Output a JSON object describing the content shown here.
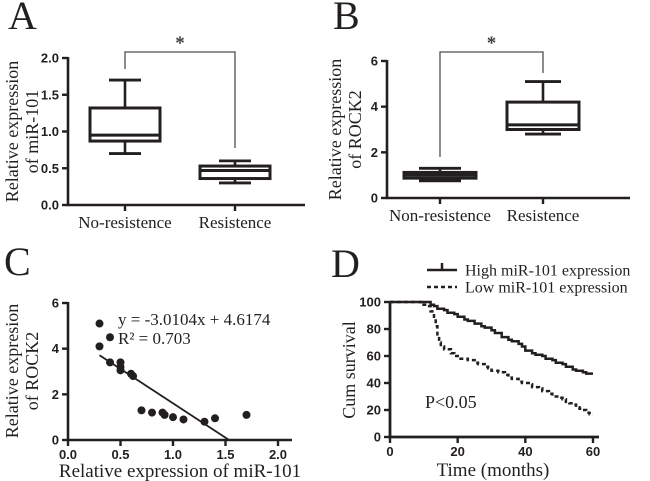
{
  "colors": {
    "ink": "#231f20",
    "bracket": "#4d4d4d",
    "background": "#ffffff"
  },
  "panels": {
    "a": {
      "letter": "A"
    },
    "b": {
      "letter": "B"
    },
    "c": {
      "letter": "C"
    },
    "d": {
      "letter": "D"
    }
  },
  "chart_data": [
    {
      "panel": "A",
      "type": "box",
      "ylabel_lines": [
        "Relative expression",
        "of miR-101"
      ],
      "ylim": [
        0,
        2
      ],
      "yticks": [
        {
          "value": 0.0,
          "label": "0.0"
        },
        {
          "value": 0.5,
          "label": "0.5"
        },
        {
          "value": 1.0,
          "label": "1.0"
        },
        {
          "value": 1.5,
          "label": "1.5"
        },
        {
          "value": 2.0,
          "label": "2.0"
        }
      ],
      "categories": [
        "No-resistence",
        "Resistence"
      ],
      "boxes": [
        {
          "label": "No-resistence",
          "min": 0.7,
          "q1": 0.87,
          "median": 0.95,
          "q3": 1.32,
          "max": 1.7
        },
        {
          "label": "Resistence",
          "min": 0.3,
          "q1": 0.36,
          "median": 0.47,
          "q3": 0.53,
          "max": 0.6
        }
      ],
      "significance": "*"
    },
    {
      "panel": "B",
      "type": "box",
      "ylabel_lines": [
        "Relative expression",
        "of ROCK2"
      ],
      "ylim": [
        0,
        6
      ],
      "yticks": [
        {
          "value": 0,
          "label": "0"
        },
        {
          "value": 2,
          "label": "2"
        },
        {
          "value": 4,
          "label": "4"
        },
        {
          "value": 6,
          "label": "6"
        }
      ],
      "categories": [
        "Non-resistence",
        "Resistence"
      ],
      "boxes": [
        {
          "label": "Non-resistence",
          "min": 0.75,
          "q1": 0.87,
          "median": 1.0,
          "q3": 1.12,
          "max": 1.3
        },
        {
          "label": "Resistence",
          "min": 2.8,
          "q1": 3.0,
          "median": 3.2,
          "q3": 4.2,
          "max": 5.1
        }
      ],
      "significance": "*"
    },
    {
      "panel": "C",
      "type": "scatter",
      "ylabel_lines": [
        "Relative expresion",
        "of ROCK2"
      ],
      "xlabel": "Relative expression of miR-101",
      "ylim": [
        0,
        6
      ],
      "xlim": [
        0,
        2
      ],
      "yticks": [
        {
          "value": 0,
          "label": "0"
        },
        {
          "value": 2,
          "label": "2"
        },
        {
          "value": 4,
          "label": "4"
        },
        {
          "value": 6,
          "label": "6"
        }
      ],
      "xticks": [
        {
          "value": 0.0,
          "label": "0.0"
        },
        {
          "value": 0.5,
          "label": "0.5"
        },
        {
          "value": 1.0,
          "label": "1.0"
        },
        {
          "value": 1.5,
          "label": "1.5"
        },
        {
          "value": 2.0,
          "label": "2.0"
        }
      ],
      "points": [
        [
          0.3,
          5.1
        ],
        [
          0.4,
          4.5
        ],
        [
          0.3,
          4.1
        ],
        [
          0.4,
          3.4
        ],
        [
          0.5,
          3.4
        ],
        [
          0.5,
          3.2
        ],
        [
          0.5,
          3.05
        ],
        [
          0.6,
          2.9
        ],
        [
          0.62,
          2.8
        ],
        [
          0.7,
          1.3
        ],
        [
          0.8,
          1.2
        ],
        [
          0.9,
          1.2
        ],
        [
          0.92,
          1.1
        ],
        [
          1.0,
          1.0
        ],
        [
          1.1,
          0.9
        ],
        [
          1.3,
          0.8
        ],
        [
          1.4,
          0.95
        ],
        [
          1.7,
          1.1
        ]
      ],
      "regression": {
        "slope": -3.0104,
        "intercept": 4.6174,
        "x_start": 0.3,
        "x_end": 1.534
      },
      "equation_line1": "y = -3.0104x + 4.6174",
      "equation_line2": "R² = 0.703"
    },
    {
      "panel": "D",
      "type": "km",
      "ylabel": "Cum survival",
      "xlabel": "Time (months)",
      "ylim": [
        0,
        100
      ],
      "xlim": [
        0,
        60
      ],
      "yticks": [
        {
          "value": 0,
          "label": "0"
        },
        {
          "value": 20,
          "label": "20"
        },
        {
          "value": 40,
          "label": "40"
        },
        {
          "value": 60,
          "label": "60"
        },
        {
          "value": 80,
          "label": "80"
        },
        {
          "value": 100,
          "label": "100"
        }
      ],
      "xticks": [
        {
          "value": 0,
          "label": "0"
        },
        {
          "value": 20,
          "label": "20"
        },
        {
          "value": 40,
          "label": "40"
        },
        {
          "value": 60,
          "label": "60"
        }
      ],
      "pvalue": "P<0.05",
      "legend": [
        {
          "label": "High miR-101  expression",
          "style": "solid"
        },
        {
          "label": "Low miR-101  expression",
          "style": "dashed"
        }
      ],
      "series": [
        {
          "name": "High miR-101 expression",
          "style": "solid",
          "points": [
            [
              0,
              100
            ],
            [
              11,
              100
            ],
            [
              12,
              98
            ],
            [
              13,
              97
            ],
            [
              14,
              95
            ],
            [
              16,
              94
            ],
            [
              17,
              92
            ],
            [
              19,
              91
            ],
            [
              20,
              89
            ],
            [
              22,
              87
            ],
            [
              23,
              86
            ],
            [
              25,
              84
            ],
            [
              27,
              82
            ],
            [
              28,
              81
            ],
            [
              30,
              79
            ],
            [
              31,
              77
            ],
            [
              33,
              74
            ],
            [
              35,
              72
            ],
            [
              36,
              71
            ],
            [
              38,
              69
            ],
            [
              39,
              67
            ],
            [
              40,
              64
            ],
            [
              42,
              62
            ],
            [
              43,
              61
            ],
            [
              45,
              60
            ],
            [
              46,
              58
            ],
            [
              48,
              57
            ],
            [
              49,
              55
            ],
            [
              51,
              54
            ],
            [
              52,
              52
            ],
            [
              54,
              50
            ],
            [
              55,
              49
            ],
            [
              57,
              48
            ],
            [
              58,
              47
            ],
            [
              60,
              47
            ]
          ]
        },
        {
          "name": "Low miR-101 expression",
          "style": "dashed",
          "points": [
            [
              0,
              100
            ],
            [
              8,
              100
            ],
            [
              9,
              98
            ],
            [
              11,
              97
            ],
            [
              12,
              93
            ],
            [
              13,
              88
            ],
            [
              13.5,
              82
            ],
            [
              14,
              76
            ],
            [
              14.5,
              70
            ],
            [
              15,
              67
            ],
            [
              16,
              65
            ],
            [
              18,
              62
            ],
            [
              19,
              60
            ],
            [
              20,
              58
            ],
            [
              23,
              57
            ],
            [
              25,
              55
            ],
            [
              26,
              54
            ],
            [
              28,
              52
            ],
            [
              29,
              51
            ],
            [
              30,
              49
            ],
            [
              32,
              48
            ],
            [
              34,
              46
            ],
            [
              35,
              44
            ],
            [
              36,
              43
            ],
            [
              38,
              41
            ],
            [
              39,
              40
            ],
            [
              41,
              39
            ],
            [
              42,
              37
            ],
            [
              44,
              36
            ],
            [
              45,
              34
            ],
            [
              47,
              32
            ],
            [
              48,
              30
            ],
            [
              50,
              29
            ],
            [
              51,
              28
            ],
            [
              52,
              26
            ],
            [
              53,
              25
            ],
            [
              54,
              24
            ],
            [
              55,
              22
            ],
            [
              56,
              21
            ],
            [
              57,
              20
            ],
            [
              58,
              18
            ],
            [
              59,
              17
            ],
            [
              60,
              17
            ]
          ]
        }
      ]
    }
  ]
}
